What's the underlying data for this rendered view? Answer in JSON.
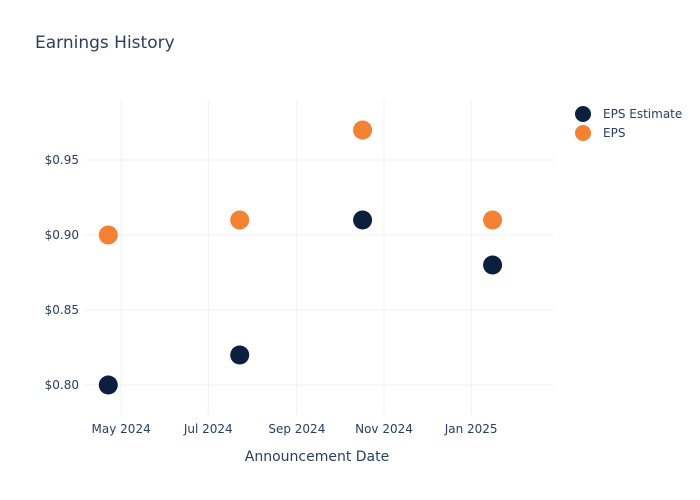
{
  "chart_data": {
    "type": "scatter",
    "title": "Earnings History",
    "xlabel": "Announcement Date",
    "ylabel": "",
    "x_axis_type": "date",
    "xlim": [
      "2024-04-05",
      "2025-02-28"
    ],
    "ylim": [
      0.78,
      0.99
    ],
    "x_ticks": [
      {
        "value": "2024-05-01",
        "label": "May 2024"
      },
      {
        "value": "2024-07-01",
        "label": "Jul 2024"
      },
      {
        "value": "2024-09-01",
        "label": "Sep 2024"
      },
      {
        "value": "2024-11-01",
        "label": "Nov 2024"
      },
      {
        "value": "2025-01-01",
        "label": "Jan 2025"
      }
    ],
    "y_ticks": [
      {
        "value": 0.8,
        "label": "$0.80"
      },
      {
        "value": 0.85,
        "label": "$0.85"
      },
      {
        "value": 0.9,
        "label": "$0.90"
      },
      {
        "value": 0.95,
        "label": "$0.95"
      }
    ],
    "grid": true,
    "legend_position": "top-right",
    "series": [
      {
        "name": "EPS Estimate",
        "color": "#0b1f3f",
        "points": [
          {
            "x": "2024-04-22",
            "y": 0.8
          },
          {
            "x": "2024-07-23",
            "y": 0.82
          },
          {
            "x": "2024-10-17",
            "y": 0.91
          },
          {
            "x": "2025-01-16",
            "y": 0.88
          }
        ]
      },
      {
        "name": "EPS",
        "color": "#f58233",
        "points": [
          {
            "x": "2024-04-22",
            "y": 0.9
          },
          {
            "x": "2024-07-23",
            "y": 0.91
          },
          {
            "x": "2024-10-17",
            "y": 0.97
          },
          {
            "x": "2025-01-16",
            "y": 0.91
          }
        ]
      }
    ]
  }
}
